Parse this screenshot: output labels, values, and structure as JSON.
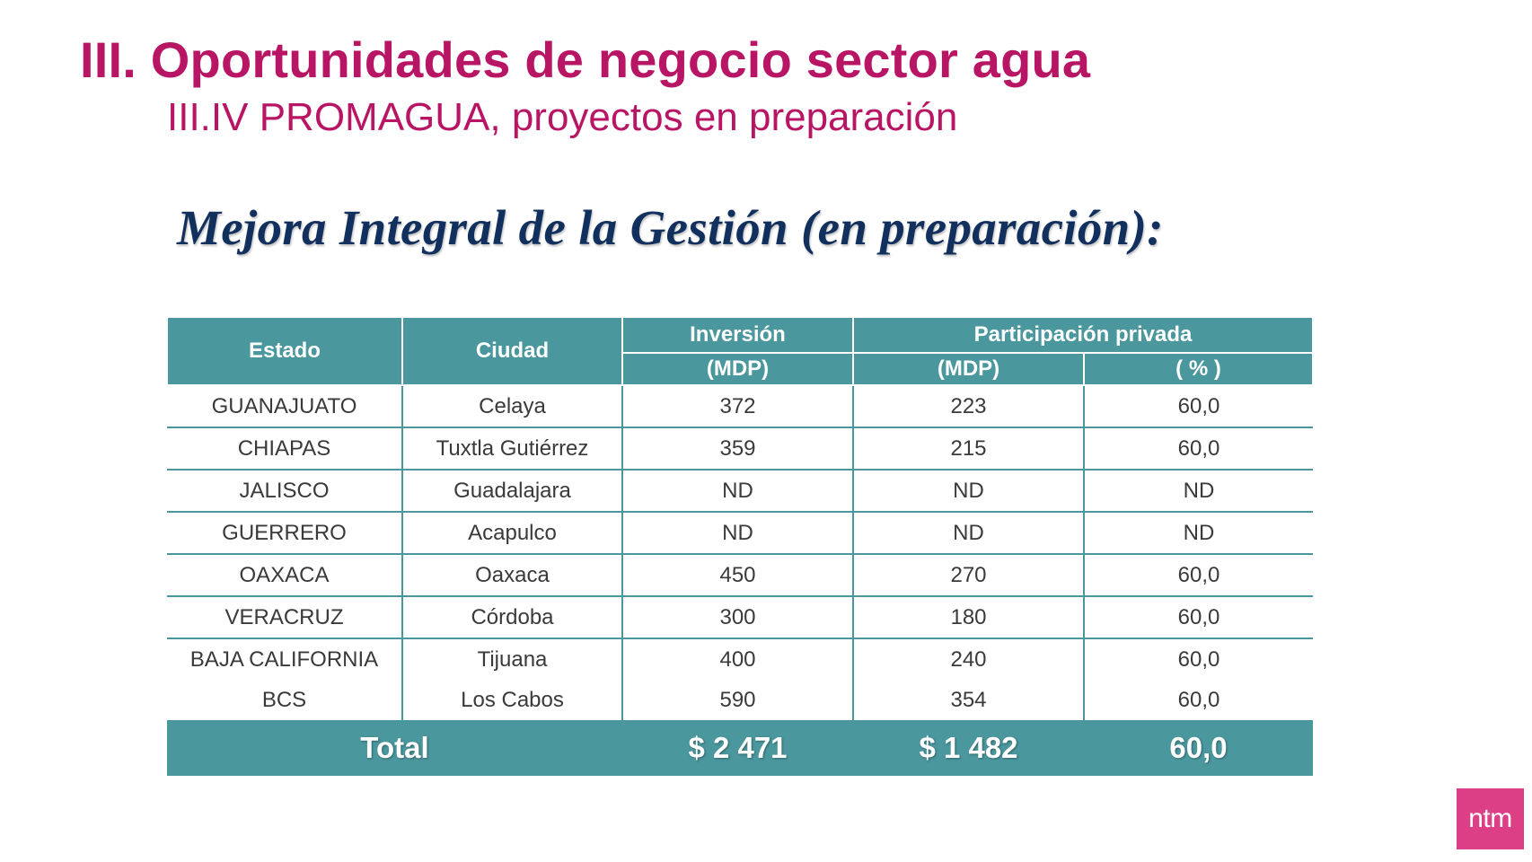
{
  "title": "III. Oportunidades de negocio sector agua",
  "subtitle": "III.IV PROMAGUA, proyectos en preparación",
  "heading": "Mejora Integral de la Gestión (en preparación):",
  "table": {
    "headers": {
      "estado": "Estado",
      "ciudad": "Ciudad",
      "inversion_top": "Inversión",
      "inversion_bottom": "(MDP)",
      "participacion": "Participación privada",
      "part_mdp": "(MDP)",
      "part_pct": "( % )"
    },
    "rows": [
      {
        "estado": "GUANAJUATO",
        "ciudad": "Celaya",
        "inversion": "372",
        "part_mdp": "223",
        "part_pct": "60,0"
      },
      {
        "estado": "CHIAPAS",
        "ciudad": "Tuxtla Gutiérrez",
        "inversion": "359",
        "part_mdp": "215",
        "part_pct": "60,0"
      },
      {
        "estado": "JALISCO",
        "ciudad": "Guadalajara",
        "inversion": "ND",
        "part_mdp": "ND",
        "part_pct": "ND"
      },
      {
        "estado": "GUERRERO",
        "ciudad": "Acapulco",
        "inversion": "ND",
        "part_mdp": "ND",
        "part_pct": "ND"
      },
      {
        "estado": "OAXACA",
        "ciudad": "Oaxaca",
        "inversion": "450",
        "part_mdp": "270",
        "part_pct": "60,0"
      },
      {
        "estado": "VERACRUZ",
        "ciudad": "Córdoba",
        "inversion": "300",
        "part_mdp": "180",
        "part_pct": "60,0"
      },
      {
        "estado": "BAJA CALIFORNIA",
        "ciudad": "Tijuana",
        "inversion": "400",
        "part_mdp": "240",
        "part_pct": "60,0"
      },
      {
        "estado": "BCS",
        "ciudad": "Los Cabos",
        "inversion": "590",
        "part_mdp": "354",
        "part_pct": "60,0"
      }
    ],
    "total": {
      "label": "Total",
      "inversion": "$ 2 471",
      "part_mdp": "$ 1 482",
      "part_pct": "60,0"
    }
  },
  "logo": "ntm",
  "colors": {
    "title": "#b81565",
    "heading": "#12305e",
    "table_header": "#4a979e",
    "logo_bg": "#dc3f86"
  }
}
